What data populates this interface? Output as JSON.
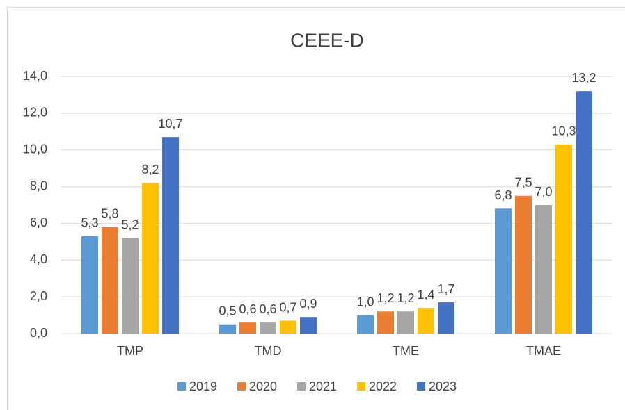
{
  "chart_data": {
    "type": "bar",
    "title": "CEEE-D",
    "categories": [
      "TMP",
      "TMD",
      "TME",
      "TMAE"
    ],
    "series": [
      {
        "name": "2019",
        "color": "#5b9bd5",
        "values": [
          5.3,
          0.5,
          1.0,
          6.8
        ],
        "value_labels": [
          "5,3",
          "0,5",
          "1,0",
          "6,8"
        ]
      },
      {
        "name": "2020",
        "color": "#ed7d31",
        "values": [
          5.8,
          0.6,
          1.2,
          7.5
        ],
        "value_labels": [
          "5,8",
          "0,6",
          "1,2",
          "7,5"
        ]
      },
      {
        "name": "2021",
        "color": "#a5a5a5",
        "values": [
          5.2,
          0.6,
          1.2,
          7.0
        ],
        "value_labels": [
          "5,2",
          "0,6",
          "1,2",
          "7,0"
        ]
      },
      {
        "name": "2022",
        "color": "#ffc000",
        "values": [
          8.2,
          0.7,
          1.4,
          10.3
        ],
        "value_labels": [
          "8,2",
          "0,7",
          "1,4",
          "10,3"
        ]
      },
      {
        "name": "2023",
        "color": "#4472c4",
        "values": [
          10.7,
          0.9,
          1.7,
          13.2
        ],
        "value_labels": [
          "10,7",
          "0,9",
          "1,7",
          "13,2"
        ]
      }
    ],
    "ylim": [
      0,
      14
    ],
    "yticks": [
      {
        "value": 0,
        "label": "0,0"
      },
      {
        "value": 2,
        "label": "2,0"
      },
      {
        "value": 4,
        "label": "4,0"
      },
      {
        "value": 6,
        "label": "6,0"
      },
      {
        "value": 8,
        "label": "8,0"
      },
      {
        "value": 10,
        "label": "10,0"
      },
      {
        "value": 12,
        "label": "12,0"
      },
      {
        "value": 14,
        "label": "14,0"
      }
    ],
    "grid": true,
    "legend": "bottom"
  }
}
